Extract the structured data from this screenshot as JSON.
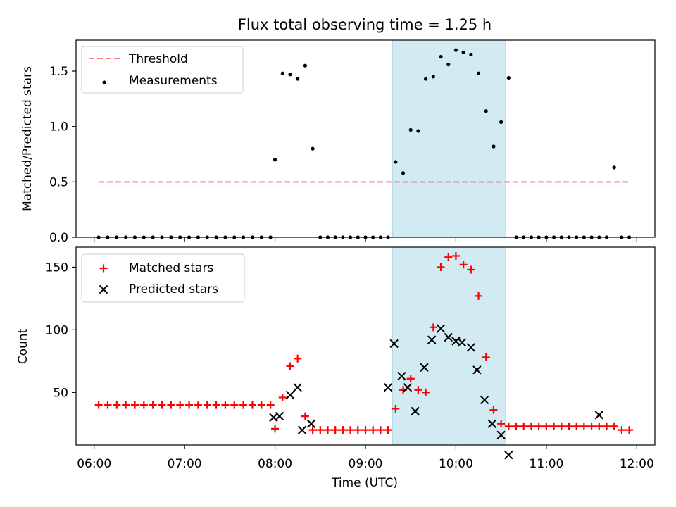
{
  "title": "Flux total observing time = 1.25 h",
  "colors": {
    "threshold": "#ff7f7f",
    "measurement": "#000000",
    "matched": "#ff0000",
    "predicted": "#000000",
    "band_fill": "#add8e6"
  },
  "chart_data": [
    {
      "type": "scatter",
      "ylabel": "Matched/Predicted stars",
      "xlabel": "",
      "xlim": [
        "05:48",
        "12:12"
      ],
      "ylim": [
        0,
        1.78
      ],
      "yticks": [
        "0.0",
        "0.5",
        "1.0",
        "1.5"
      ],
      "shaded_interval": [
        "09:18",
        "10:33"
      ],
      "legend": {
        "placement": "top-left",
        "entries": [
          "Threshold",
          "Measurements"
        ]
      },
      "threshold": {
        "name": "Threshold",
        "y": 0.5,
        "x_range": [
          "06:03",
          "11:55"
        ]
      },
      "measurements": {
        "name": "Measurements",
        "x": [
          "06:03",
          "06:09",
          "06:15",
          "06:21",
          "06:27",
          "06:33",
          "06:39",
          "06:45",
          "06:51",
          "06:57",
          "07:03",
          "07:09",
          "07:15",
          "07:21",
          "07:27",
          "07:33",
          "07:39",
          "07:45",
          "07:51",
          "07:57",
          "08:00",
          "08:05",
          "08:10",
          "08:15",
          "08:20",
          "08:25",
          "08:30",
          "08:35",
          "08:40",
          "08:45",
          "08:50",
          "08:55",
          "09:00",
          "09:05",
          "09:10",
          "09:15",
          "09:20",
          "09:25",
          "09:30",
          "09:35",
          "09:40",
          "09:45",
          "09:50",
          "09:55",
          "10:00",
          "10:05",
          "10:10",
          "10:15",
          "10:20",
          "10:25",
          "10:30",
          "10:35",
          "10:40",
          "10:45",
          "10:50",
          "10:55",
          "11:00",
          "11:05",
          "11:10",
          "11:15",
          "11:20",
          "11:25",
          "11:30",
          "11:35",
          "11:40",
          "11:45",
          "11:50",
          "11:55"
        ],
        "y": [
          0,
          0,
          0,
          0,
          0,
          0,
          0,
          0,
          0,
          0,
          0,
          0,
          0,
          0,
          0,
          0,
          0,
          0,
          0,
          0,
          0.7,
          1.48,
          1.47,
          1.43,
          1.55,
          0.8,
          0,
          0,
          0,
          0,
          0,
          0,
          0,
          0,
          0,
          0,
          0.68,
          0.58,
          0.97,
          0.96,
          1.43,
          1.45,
          1.63,
          1.56,
          1.69,
          1.67,
          1.65,
          1.48,
          1.14,
          0.82,
          1.04,
          1.44,
          0,
          0,
          0,
          0,
          0,
          0,
          0,
          0,
          0,
          0,
          0,
          0,
          0,
          0.63,
          0,
          0
        ]
      }
    },
    {
      "type": "scatter",
      "ylabel": "Count",
      "xlabel": "Time (UTC)",
      "xlim": [
        "05:48",
        "12:12"
      ],
      "ylim": [
        8,
        166
      ],
      "yticks": [
        "50",
        "100",
        "150"
      ],
      "xticks": [
        "06:00",
        "07:00",
        "08:00",
        "09:00",
        "10:00",
        "11:00",
        "12:00"
      ],
      "shaded_interval": [
        "09:18",
        "10:33"
      ],
      "legend": {
        "placement": "top-left",
        "entries": [
          "Matched stars",
          "Predicted stars"
        ]
      },
      "series": [
        {
          "name": "Matched stars",
          "marker": "+",
          "x": [
            "06:03",
            "06:09",
            "06:15",
            "06:21",
            "06:27",
            "06:33",
            "06:39",
            "06:45",
            "06:51",
            "06:57",
            "07:03",
            "07:09",
            "07:15",
            "07:21",
            "07:27",
            "07:33",
            "07:39",
            "07:45",
            "07:51",
            "07:57",
            "08:00",
            "08:05",
            "08:10",
            "08:15",
            "08:20",
            "08:25",
            "08:30",
            "08:35",
            "08:40",
            "08:45",
            "08:50",
            "08:55",
            "09:00",
            "09:05",
            "09:10",
            "09:15",
            "09:20",
            "09:25",
            "09:30",
            "09:35",
            "09:40",
            "09:45",
            "09:50",
            "09:55",
            "10:00",
            "10:05",
            "10:10",
            "10:15",
            "10:20",
            "10:25",
            "10:30",
            "10:35",
            "10:40",
            "10:45",
            "10:50",
            "10:55",
            "11:00",
            "11:05",
            "11:10",
            "11:15",
            "11:20",
            "11:25",
            "11:30",
            "11:35",
            "11:40",
            "11:45",
            "11:50",
            "11:55"
          ],
          "y": [
            40,
            40,
            40,
            40,
            40,
            40,
            40,
            40,
            40,
            40,
            40,
            40,
            40,
            40,
            40,
            40,
            40,
            40,
            40,
            40,
            21,
            46,
            71,
            77,
            31,
            20,
            20,
            20,
            20,
            20,
            20,
            20,
            20,
            20,
            20,
            20,
            37,
            52,
            61,
            52,
            50,
            102,
            150,
            158,
            159,
            152,
            148,
            127,
            78,
            36,
            25,
            23,
            23,
            23,
            23,
            23,
            23,
            23,
            23,
            23,
            23,
            23,
            23,
            23,
            23,
            23,
            20,
            20
          ]
        },
        {
          "name": "Predicted stars",
          "marker": "x",
          "x": [
            "07:59",
            "08:03",
            "08:10",
            "08:15",
            "08:18",
            "08:24",
            "09:15",
            "09:19",
            "09:24",
            "09:28",
            "09:33",
            "09:39",
            "09:44",
            "09:50",
            "09:55",
            "10:00",
            "10:04",
            "10:10",
            "10:14",
            "10:19",
            "10:24",
            "10:30",
            "10:35",
            "11:35"
          ],
          "y": [
            30,
            31,
            48,
            54,
            20,
            25,
            54,
            89,
            63,
            54,
            35,
            70,
            92,
            101,
            94,
            91,
            90,
            86,
            68,
            44,
            25,
            16,
            0,
            32
          ]
        }
      ]
    }
  ]
}
